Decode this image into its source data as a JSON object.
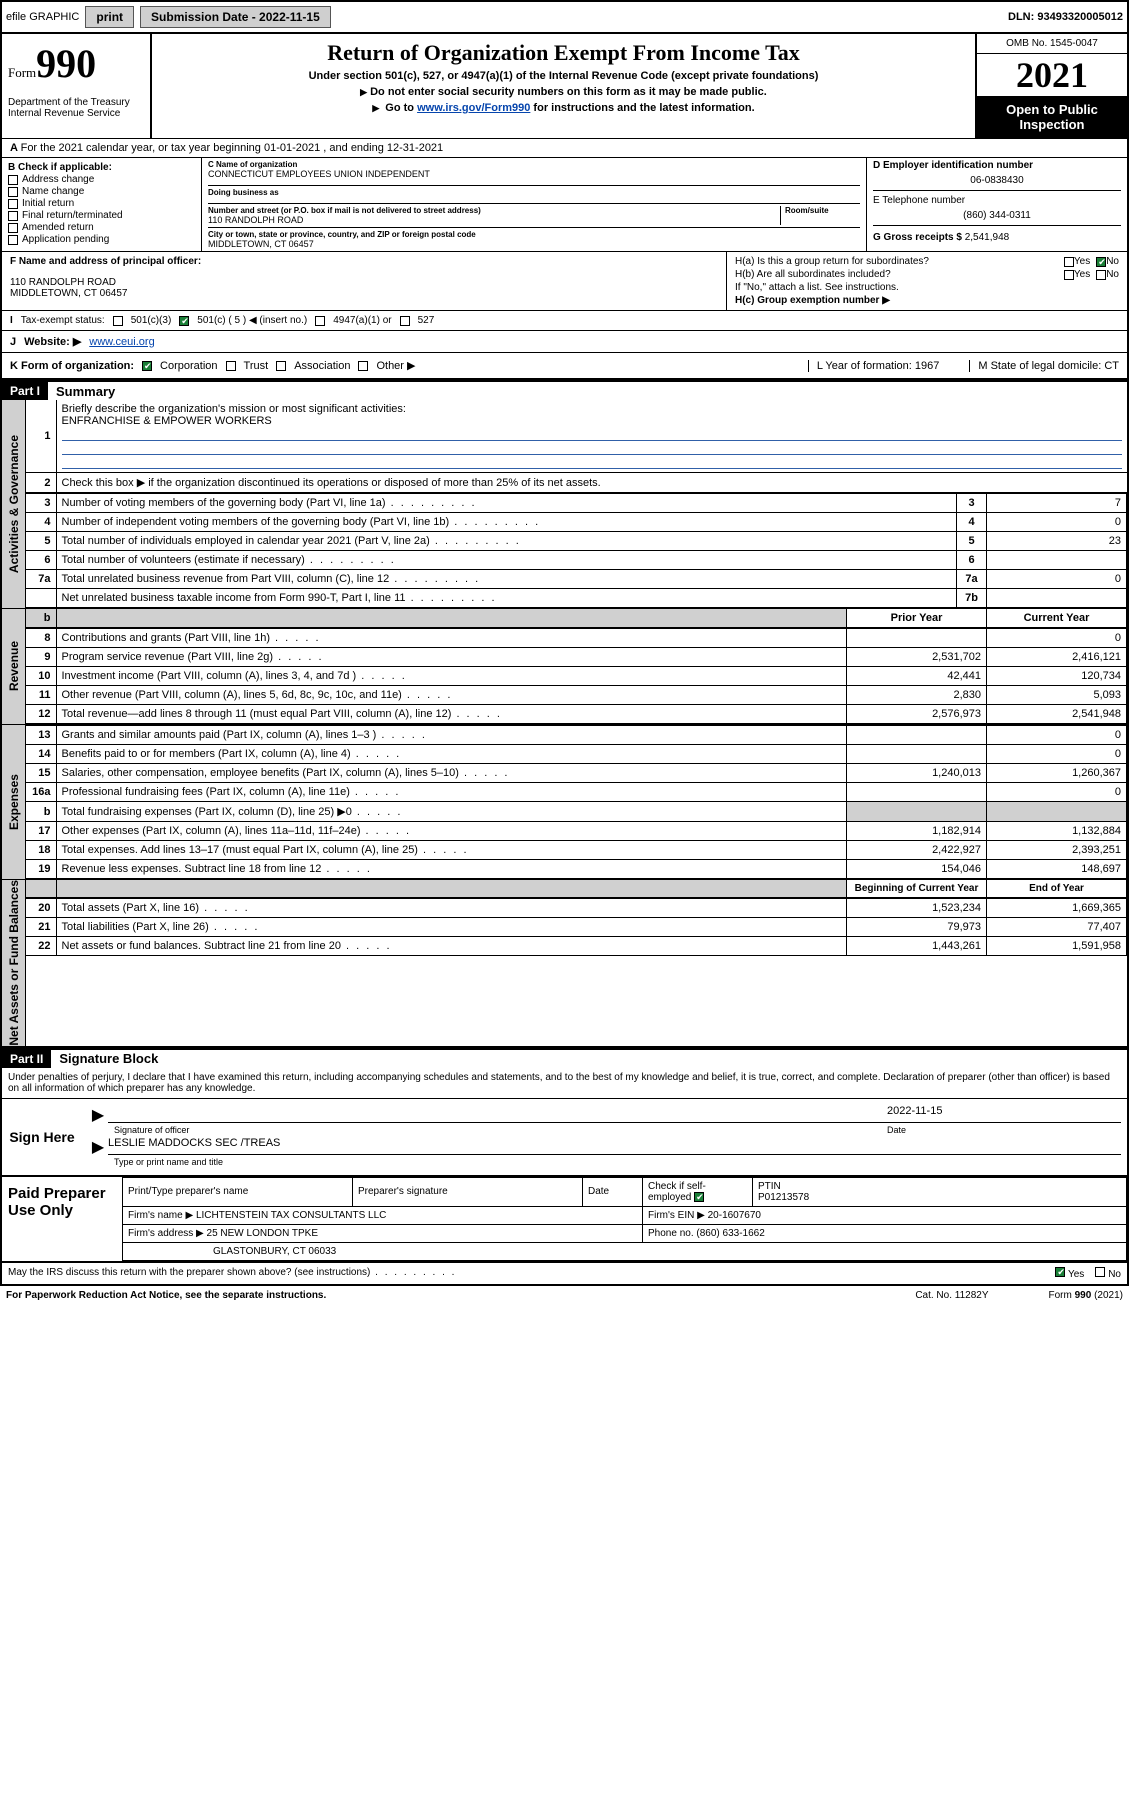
{
  "topbar": {
    "efile": "efile GRAPHIC",
    "print": "print",
    "submission_label": "Submission Date - 2022-11-15",
    "dln": "DLN: 93493320005012"
  },
  "header": {
    "form_small": "Form",
    "form_big": "990",
    "title": "Return of Organization Exempt From Income Tax",
    "subtitle1": "Under section 501(c), 527, or 4947(a)(1) of the Internal Revenue Code (except private foundations)",
    "subtitle2": "Do not enter social security numbers on this form as it may be made public.",
    "subtitle3_pre": "Go to ",
    "subtitle3_link": "www.irs.gov/Form990",
    "subtitle3_post": " for instructions and the latest information.",
    "omb": "OMB No. 1545-0047",
    "year": "2021",
    "open_public": "Open to Public Inspection",
    "dept": "Department of the Treasury",
    "irs": "Internal Revenue Service"
  },
  "line_a": "For the 2021 calendar year, or tax year beginning 01-01-2021  , and ending 12-31-2021",
  "box_b": {
    "label": "B Check if applicable:",
    "opts": [
      "Address change",
      "Name change",
      "Initial return",
      "Final return/terminated",
      "Amended return",
      "Application pending"
    ]
  },
  "box_c": {
    "name_label": "C Name of organization",
    "name": "CONNECTICUT EMPLOYEES UNION INDEPENDENT",
    "dba_label": "Doing business as",
    "dba": "",
    "addr_label": "Number and street (or P.O. box if mail is not delivered to street address)",
    "room_label": "Room/suite",
    "addr": "110 RANDOLPH ROAD",
    "city_label": "City or town, state or province, country, and ZIP or foreign postal code",
    "city": "MIDDLETOWN, CT  06457"
  },
  "box_d": {
    "label": "D Employer identification number",
    "val": "06-0838430"
  },
  "box_e": {
    "label": "E Telephone number",
    "val": "(860) 344-0311"
  },
  "box_g": {
    "label": "G Gross receipts $",
    "val": "2,541,948"
  },
  "box_f": {
    "label": "F Name and address of principal officer:",
    "addr1": "110 RANDOLPH ROAD",
    "addr2": "MIDDLETOWN, CT  06457"
  },
  "box_h": {
    "ha": "H(a)  Is this a group return for subordinates?",
    "ha_yes": "Yes",
    "ha_no": "No",
    "hb": "H(b)  Are all subordinates included?",
    "hb_yes": "Yes",
    "hb_no": "No",
    "hb_note": "If \"No,\" attach a list. See instructions.",
    "hc": "H(c)  Group exemption number ▶"
  },
  "line_i": {
    "label": "Tax-exempt status:",
    "o1": "501(c)(3)",
    "o2": "501(c) ( 5 ) ◀ (insert no.)",
    "o3": "4947(a)(1) or",
    "o4": "527"
  },
  "line_j": {
    "label": "J",
    "website_label": "Website: ▶",
    "website": "www.ceui.org"
  },
  "line_k": {
    "label": "K Form of organization:",
    "o1": "Corporation",
    "o2": "Trust",
    "o3": "Association",
    "o4": "Other ▶",
    "l": "L Year of formation: 1967",
    "m": "M State of legal domicile: CT"
  },
  "part1": {
    "header": "Part I",
    "title": "Summary",
    "l1": "Briefly describe the organization's mission or most significant activities:",
    "mission": "ENFRANCHISE & EMPOWER WORKERS",
    "l2": "Check this box ▶           if the organization discontinued its operations or disposed of more than 25% of its net assets.",
    "sidebar_ag": "Activities & Governance",
    "rows_ag": [
      {
        "n": "3",
        "t": "Number of voting members of the governing body (Part VI, line 1a)",
        "box": "3",
        "v": "7"
      },
      {
        "n": "4",
        "t": "Number of independent voting members of the governing body (Part VI, line 1b)",
        "box": "4",
        "v": "0"
      },
      {
        "n": "5",
        "t": "Total number of individuals employed in calendar year 2021 (Part V, line 2a)",
        "box": "5",
        "v": "23"
      },
      {
        "n": "6",
        "t": "Total number of volunteers (estimate if necessary)",
        "box": "6",
        "v": ""
      },
      {
        "n": "7a",
        "t": "Total unrelated business revenue from Part VIII, column (C), line 12",
        "box": "7a",
        "v": "0"
      },
      {
        "n": "",
        "t": "Net unrelated business taxable income from Form 990-T, Part I, line 11",
        "box": "7b",
        "v": ""
      }
    ],
    "sidebar_rev": "Revenue",
    "col_prior": "Prior Year",
    "col_current": "Current Year",
    "rows_rev": [
      {
        "n": "8",
        "t": "Contributions and grants (Part VIII, line 1h)",
        "p": "",
        "c": "0"
      },
      {
        "n": "9",
        "t": "Program service revenue (Part VIII, line 2g)",
        "p": "2,531,702",
        "c": "2,416,121"
      },
      {
        "n": "10",
        "t": "Investment income (Part VIII, column (A), lines 3, 4, and 7d )",
        "p": "42,441",
        "c": "120,734"
      },
      {
        "n": "11",
        "t": "Other revenue (Part VIII, column (A), lines 5, 6d, 8c, 9c, 10c, and 11e)",
        "p": "2,830",
        "c": "5,093"
      },
      {
        "n": "12",
        "t": "Total revenue—add lines 8 through 11 (must equal Part VIII, column (A), line 12)",
        "p": "2,576,973",
        "c": "2,541,948"
      }
    ],
    "sidebar_exp": "Expenses",
    "rows_exp": [
      {
        "n": "13",
        "t": "Grants and similar amounts paid (Part IX, column (A), lines 1–3 )",
        "p": "",
        "c": "0"
      },
      {
        "n": "14",
        "t": "Benefits paid to or for members (Part IX, column (A), line 4)",
        "p": "",
        "c": "0"
      },
      {
        "n": "15",
        "t": "Salaries, other compensation, employee benefits (Part IX, column (A), lines 5–10)",
        "p": "1,240,013",
        "c": "1,260,367"
      },
      {
        "n": "16a",
        "t": "Professional fundraising fees (Part IX, column (A), line 11e)",
        "p": "",
        "c": "0"
      },
      {
        "n": "b",
        "t": "Total fundraising expenses (Part IX, column (D), line 25) ▶0",
        "p": "GRAY",
        "c": "GRAY"
      },
      {
        "n": "17",
        "t": "Other expenses (Part IX, column (A), lines 11a–11d, 11f–24e)",
        "p": "1,182,914",
        "c": "1,132,884"
      },
      {
        "n": "18",
        "t": "Total expenses. Add lines 13–17 (must equal Part IX, column (A), line 25)",
        "p": "2,422,927",
        "c": "2,393,251"
      },
      {
        "n": "19",
        "t": "Revenue less expenses. Subtract line 18 from line 12",
        "p": "154,046",
        "c": "148,697"
      }
    ],
    "sidebar_net": "Net Assets or Fund Balances",
    "col_begin": "Beginning of Current Year",
    "col_end": "End of Year",
    "rows_net": [
      {
        "n": "20",
        "t": "Total assets (Part X, line 16)",
        "p": "1,523,234",
        "c": "1,669,365"
      },
      {
        "n": "21",
        "t": "Total liabilities (Part X, line 26)",
        "p": "79,973",
        "c": "77,407"
      },
      {
        "n": "22",
        "t": "Net assets or fund balances. Subtract line 21 from line 20",
        "p": "1,443,261",
        "c": "1,591,958"
      }
    ]
  },
  "part2": {
    "header": "Part II",
    "title": "Signature Block",
    "penalty": "Under penalties of perjury, I declare that I have examined this return, including accompanying schedules and statements, and to the best of my knowledge and belief, it is true, correct, and complete. Declaration of preparer (other than officer) is based on all information of which preparer has any knowledge.",
    "sign_here": "Sign Here",
    "sig_officer": "Signature of officer",
    "date_label": "Date",
    "date": "2022-11-15",
    "name_title": "LESLIE MADDOCKS  SEC /TREAS",
    "type_name": "Type or print name and title",
    "paid": "Paid Preparer Use Only",
    "pt_name": "Print/Type preparer's name",
    "pt_sig": "Preparer's signature",
    "pt_date": "Date",
    "pt_check": "Check         if self-employed",
    "pt_ptin_label": "PTIN",
    "pt_ptin": "P01213578",
    "firm_name_label": "Firm's name      ▶",
    "firm_name": "LICHTENSTEIN TAX CONSULTANTS LLC",
    "firm_ein_label": "Firm's EIN ▶",
    "firm_ein": "20-1607670",
    "firm_addr_label": "Firm's address ▶",
    "firm_addr1": "25 NEW LONDON TPKE",
    "firm_addr2": "GLASTONBURY, CT  06033",
    "phone_label": "Phone no.",
    "phone": "(860) 633-1662",
    "discuss": "May the IRS discuss this return with the preparer shown above? (see instructions)",
    "discuss_yes": "Yes",
    "discuss_no": "No"
  },
  "footer": {
    "paperwork": "For Paperwork Reduction Act Notice, see the separate instructions.",
    "cat": "Cat. No. 11282Y",
    "form": "Form 990 (2021)"
  }
}
